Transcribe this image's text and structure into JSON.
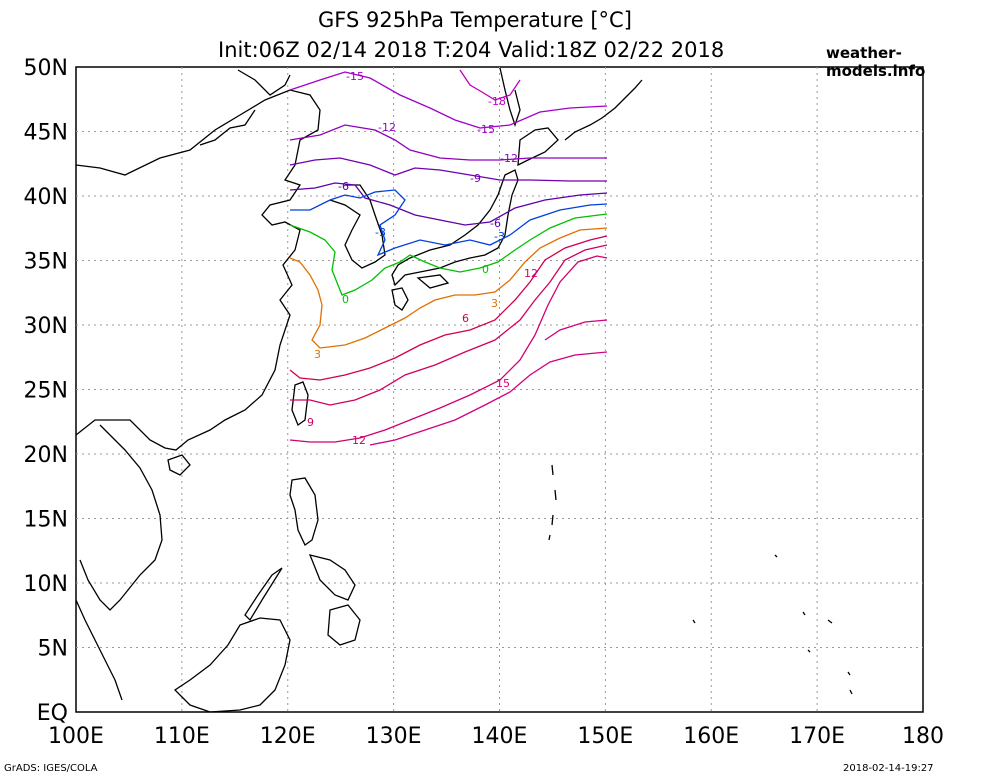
{
  "title": {
    "line1": "GFS 925hPa Temperature [°C]",
    "line2": "Init:06Z 02/14 2018 T:204 Valid:18Z 02/22 2018"
  },
  "source_label": "weather-models.info",
  "footer": {
    "left": "GrADS: IGES/COLA",
    "right": "2018-02-14-19:27"
  },
  "map": {
    "lon_range": [
      100,
      180
    ],
    "lat_range": [
      0,
      50
    ],
    "data_domain": {
      "lon": [
        120,
        150
      ],
      "lat": [
        20,
        50
      ]
    },
    "grid": true,
    "x_ticks": [
      "100E",
      "110E",
      "120E",
      "130E",
      "140E",
      "150E",
      "160E",
      "170E",
      "180"
    ],
    "y_ticks": [
      "EQ",
      "5N",
      "10N",
      "15N",
      "20N",
      "25N",
      "30N",
      "35N",
      "40N",
      "45N",
      "50N"
    ],
    "contour_labels": [
      "-18",
      "-15",
      "-12",
      "-9",
      "-6",
      "-3",
      "0",
      "3",
      "6",
      "9",
      "12",
      "15"
    ],
    "colors": {
      "minus18": "#c000c0",
      "minus15": "#a000c8",
      "minus12": "#9000c0",
      "minus9": "#7000b0",
      "minus6": "#6000a8",
      "minus3": "#0040e0",
      "zero": "#00c000",
      "plus3": "#e07000",
      "plus6": "#d00050",
      "plus9": "#d00060",
      "plus12": "#d00070",
      "plus15": "#d00080"
    }
  }
}
